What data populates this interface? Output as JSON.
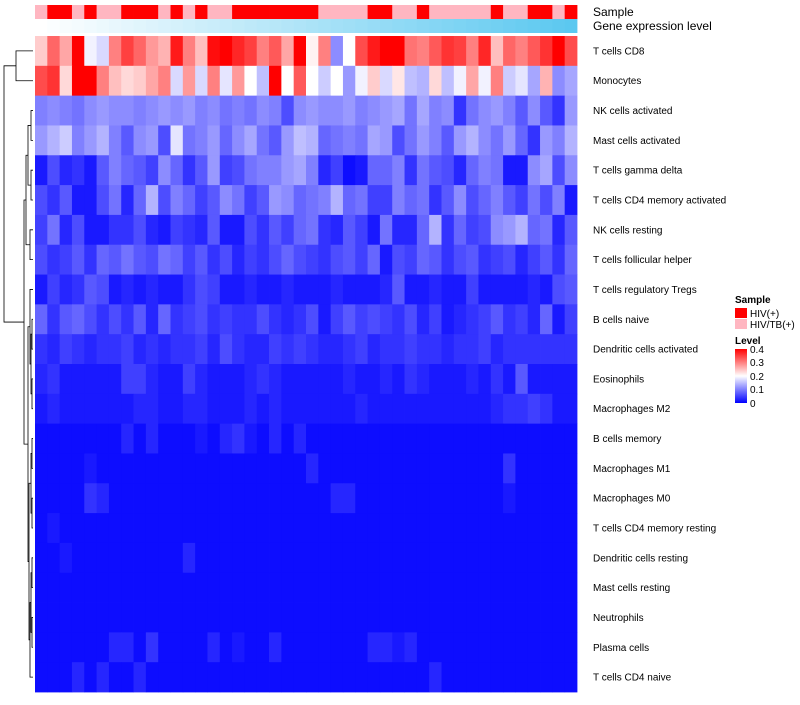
{
  "chart_data": {
    "type": "heatmap",
    "title": "",
    "annotation_labels": {
      "sample": "Sample",
      "gene_expression": "Gene expression level"
    },
    "rows": [
      "T cells CD8",
      "Monocytes",
      "NK cells activated",
      "Mast cells activated",
      "T cells gamma delta",
      "T cells CD4 memory activated",
      "NK cells resting",
      "T cells follicular helper",
      "T cells regulatory  Tregs",
      "B cells naive",
      "Dendritic cells activated",
      "Eosinophils",
      "Macrophages M2",
      "B cells memory",
      "Macrophages M1",
      "Macrophages M0",
      "T cells CD4 memory resting",
      "Dendritic cells resting",
      "Mast cells resting",
      "Neutrophils",
      "Plasma cells",
      "T cells CD4 naive"
    ],
    "n_columns": 44,
    "sample_groups": [
      "HIV/TB(+)",
      "HIV(+)",
      "HIV(+)",
      "HIV/TB(+)",
      "HIV(+)",
      "HIV/TB(+)",
      "HIV/TB(+)",
      "HIV(+)",
      "HIV(+)",
      "HIV(+)",
      "HIV/TB(+)",
      "HIV(+)",
      "HIV/TB(+)",
      "HIV(+)",
      "HIV/TB(+)",
      "HIV/TB(+)",
      "HIV(+)",
      "HIV(+)",
      "HIV(+)",
      "HIV(+)",
      "HIV(+)",
      "HIV(+)",
      "HIV(+)",
      "HIV/TB(+)",
      "HIV/TB(+)",
      "HIV/TB(+)",
      "HIV/TB(+)",
      "HIV(+)",
      "HIV(+)",
      "HIV/TB(+)",
      "HIV/TB(+)",
      "HIV(+)",
      "HIV/TB(+)",
      "HIV/TB(+)",
      "HIV/TB(+)",
      "HIV/TB(+)",
      "HIV/TB(+)",
      "HIV(+)",
      "HIV/TB(+)",
      "HIV/TB(+)",
      "HIV(+)",
      "HIV(+)",
      "HIV/TB(+)",
      "HIV(+)"
    ],
    "gene_expression_gradient": {
      "low_color": "#FFFFFF",
      "high_color": "#5BC8F0"
    },
    "values": [
      [
        0.24,
        0.32,
        0.27,
        0.4,
        0.19,
        0.17,
        0.3,
        0.35,
        0.32,
        0.28,
        0.26,
        0.38,
        0.3,
        0.25,
        0.39,
        0.4,
        0.37,
        0.35,
        0.3,
        0.33,
        0.27,
        0.4,
        0.21,
        0.3,
        0.11,
        0.2,
        0.34,
        0.38,
        0.4,
        0.4,
        0.31,
        0.3,
        0.33,
        0.36,
        0.35,
        0.3,
        0.37,
        0.25,
        0.32,
        0.3,
        0.33,
        0.36,
        0.4,
        0.34
      ],
      [
        0.34,
        0.36,
        0.23,
        0.4,
        0.4,
        0.3,
        0.25,
        0.23,
        0.24,
        0.27,
        0.3,
        0.17,
        0.28,
        0.17,
        0.3,
        0.18,
        0.28,
        0.2,
        0.15,
        0.4,
        0.2,
        0.33,
        0.2,
        0.16,
        0.2,
        0.12,
        0.19,
        0.24,
        0.17,
        0.22,
        0.15,
        0.14,
        0.23,
        0.15,
        0.19,
        0.27,
        0.19,
        0.3,
        0.16,
        0.18,
        0.13,
        0.26,
        0.11,
        0.13
      ],
      [
        0.1,
        0.11,
        0.1,
        0.09,
        0.11,
        0.12,
        0.11,
        0.11,
        0.1,
        0.11,
        0.12,
        0.11,
        0.12,
        0.1,
        0.11,
        0.09,
        0.1,
        0.09,
        0.11,
        0.1,
        0.06,
        0.11,
        0.12,
        0.11,
        0.11,
        0.12,
        0.1,
        0.11,
        0.12,
        0.13,
        0.09,
        0.13,
        0.1,
        0.11,
        0.04,
        0.09,
        0.11,
        0.12,
        0.1,
        0.07,
        0.11,
        0.07,
        0.04,
        0.12
      ],
      [
        0.12,
        0.14,
        0.16,
        0.1,
        0.12,
        0.14,
        0.1,
        0.07,
        0.11,
        0.12,
        0.06,
        0.18,
        0.09,
        0.1,
        0.12,
        0.08,
        0.11,
        0.13,
        0.09,
        0.07,
        0.12,
        0.15,
        0.14,
        0.08,
        0.09,
        0.1,
        0.09,
        0.13,
        0.12,
        0.06,
        0.09,
        0.12,
        0.1,
        0.07,
        0.12,
        0.14,
        0.11,
        0.09,
        0.12,
        0.08,
        0.04,
        0.12,
        0.1,
        0.14
      ],
      [
        0.02,
        0.06,
        0.03,
        0.04,
        0.02,
        0.07,
        0.1,
        0.08,
        0.07,
        0.05,
        0.11,
        0.08,
        0.04,
        0.07,
        0.12,
        0.05,
        0.06,
        0.09,
        0.1,
        0.1,
        0.12,
        0.13,
        0.1,
        0.03,
        0.05,
        0.01,
        0.02,
        0.08,
        0.08,
        0.1,
        0.04,
        0.09,
        0.07,
        0.06,
        0.03,
        0.08,
        0.1,
        0.09,
        0.02,
        0.02,
        0.11,
        0.13,
        0.06,
        0.11
      ],
      [
        0.06,
        0.04,
        0.07,
        0.02,
        0.02,
        0.06,
        0.09,
        0.03,
        0.08,
        0.14,
        0.06,
        0.1,
        0.08,
        0.05,
        0.07,
        0.11,
        0.09,
        0.05,
        0.07,
        0.12,
        0.11,
        0.08,
        0.09,
        0.1,
        0.14,
        0.08,
        0.09,
        0.05,
        0.05,
        0.1,
        0.08,
        0.09,
        0.04,
        0.07,
        0.11,
        0.06,
        0.08,
        0.1,
        0.07,
        0.05,
        0.09,
        0.06,
        0.1,
        0.02
      ],
      [
        0.05,
        0.09,
        0.03,
        0.06,
        0.02,
        0.02,
        0.04,
        0.04,
        0.06,
        0.03,
        0.02,
        0.05,
        0.04,
        0.03,
        0.07,
        0.02,
        0.02,
        0.06,
        0.04,
        0.07,
        0.05,
        0.08,
        0.09,
        0.04,
        0.03,
        0.07,
        0.05,
        0.02,
        0.09,
        0.03,
        0.03,
        0.08,
        0.14,
        0.04,
        0.08,
        0.05,
        0.06,
        0.11,
        0.12,
        0.14,
        0.08,
        0.09,
        0.03,
        0.07
      ],
      [
        0.06,
        0.04,
        0.05,
        0.07,
        0.04,
        0.08,
        0.07,
        0.09,
        0.07,
        0.06,
        0.09,
        0.08,
        0.05,
        0.07,
        0.04,
        0.06,
        0.03,
        0.05,
        0.04,
        0.06,
        0.08,
        0.06,
        0.05,
        0.04,
        0.06,
        0.07,
        0.05,
        0.08,
        0.02,
        0.06,
        0.05,
        0.08,
        0.07,
        0.04,
        0.06,
        0.07,
        0.04,
        0.05,
        0.06,
        0.03,
        0.05,
        0.07,
        0.04,
        0.08
      ],
      [
        0.02,
        0.05,
        0.03,
        0.04,
        0.07,
        0.06,
        0.02,
        0.03,
        0.02,
        0.03,
        0.02,
        0.02,
        0.04,
        0.06,
        0.05,
        0.02,
        0.02,
        0.03,
        0.02,
        0.02,
        0.03,
        0.02,
        0.02,
        0.02,
        0.03,
        0.02,
        0.02,
        0.02,
        0.03,
        0.07,
        0.02,
        0.02,
        0.03,
        0.02,
        0.02,
        0.05,
        0.02,
        0.02,
        0.02,
        0.02,
        0.03,
        0.02,
        0.06,
        0.07
      ],
      [
        0.08,
        0.04,
        0.07,
        0.08,
        0.06,
        0.04,
        0.06,
        0.04,
        0.07,
        0.03,
        0.08,
        0.04,
        0.05,
        0.06,
        0.04,
        0.05,
        0.04,
        0.04,
        0.06,
        0.04,
        0.03,
        0.04,
        0.06,
        0.02,
        0.05,
        0.07,
        0.05,
        0.06,
        0.05,
        0.04,
        0.06,
        0.03,
        0.05,
        0.02,
        0.03,
        0.04,
        0.05,
        0.07,
        0.04,
        0.05,
        0.03,
        0.08,
        0.02,
        0.05
      ],
      [
        0.04,
        0.03,
        0.05,
        0.04,
        0.03,
        0.04,
        0.04,
        0.05,
        0.03,
        0.04,
        0.03,
        0.04,
        0.04,
        0.05,
        0.03,
        0.06,
        0.04,
        0.03,
        0.03,
        0.05,
        0.04,
        0.05,
        0.04,
        0.03,
        0.03,
        0.04,
        0.05,
        0.03,
        0.04,
        0.04,
        0.05,
        0.04,
        0.04,
        0.03,
        0.04,
        0.04,
        0.05,
        0.03,
        0.04,
        0.04,
        0.04,
        0.04,
        0.04,
        0.04
      ],
      [
        0.03,
        0.04,
        0.02,
        0.02,
        0.02,
        0.02,
        0.02,
        0.05,
        0.05,
        0.03,
        0.02,
        0.02,
        0.05,
        0.03,
        0.02,
        0.02,
        0.02,
        0.03,
        0.04,
        0.03,
        0.02,
        0.02,
        0.02,
        0.02,
        0.02,
        0.03,
        0.02,
        0.02,
        0.03,
        0.02,
        0.04,
        0.03,
        0.02,
        0.02,
        0.02,
        0.03,
        0.02,
        0.04,
        0.02,
        0.07,
        0.02,
        0.02,
        0.02,
        0.02
      ],
      [
        0.02,
        0.03,
        0.02,
        0.02,
        0.02,
        0.02,
        0.02,
        0.02,
        0.03,
        0.03,
        0.02,
        0.02,
        0.03,
        0.03,
        0.02,
        0.02,
        0.02,
        0.03,
        0.02,
        0.03,
        0.02,
        0.02,
        0.02,
        0.02,
        0.02,
        0.02,
        0.03,
        0.02,
        0.02,
        0.02,
        0.02,
        0.02,
        0.02,
        0.02,
        0.02,
        0.02,
        0.02,
        0.03,
        0.04,
        0.04,
        0.05,
        0.04,
        0.02,
        0.02
      ],
      [
        0.01,
        0.01,
        0.01,
        0.01,
        0.01,
        0.01,
        0.01,
        0.03,
        0.01,
        0.03,
        0.01,
        0.01,
        0.01,
        0.02,
        0.01,
        0.03,
        0.04,
        0.02,
        0.01,
        0.03,
        0.01,
        0.03,
        0.01,
        0.01,
        0.01,
        0.01,
        0.01,
        0.01,
        0.01,
        0.01,
        0.01,
        0.01,
        0.01,
        0.01,
        0.01,
        0.01,
        0.01,
        0.01,
        0.01,
        0.01,
        0.01,
        0.01,
        0.01,
        0.01
      ],
      [
        0.01,
        0.01,
        0.01,
        0.01,
        0.02,
        0.01,
        0.01,
        0.01,
        0.01,
        0.01,
        0.01,
        0.01,
        0.01,
        0.01,
        0.01,
        0.01,
        0.01,
        0.01,
        0.01,
        0.01,
        0.01,
        0.01,
        0.03,
        0.01,
        0.01,
        0.01,
        0.01,
        0.01,
        0.01,
        0.01,
        0.01,
        0.01,
        0.01,
        0.01,
        0.01,
        0.01,
        0.01,
        0.01,
        0.04,
        0.01,
        0.01,
        0.01,
        0.01,
        0.01
      ],
      [
        0.01,
        0.01,
        0.01,
        0.01,
        0.04,
        0.03,
        0.01,
        0.01,
        0.01,
        0.01,
        0.01,
        0.01,
        0.01,
        0.01,
        0.01,
        0.01,
        0.01,
        0.01,
        0.01,
        0.01,
        0.01,
        0.01,
        0.01,
        0.01,
        0.03,
        0.03,
        0.01,
        0.01,
        0.01,
        0.01,
        0.01,
        0.01,
        0.01,
        0.01,
        0.01,
        0.01,
        0.01,
        0.01,
        0.02,
        0.01,
        0.01,
        0.01,
        0.01,
        0.01
      ],
      [
        0.01,
        0.02,
        0.01,
        0.01,
        0.01,
        0.01,
        0.01,
        0.01,
        0.01,
        0.01,
        0.01,
        0.01,
        0.01,
        0.01,
        0.01,
        0.01,
        0.01,
        0.01,
        0.01,
        0.01,
        0.01,
        0.01,
        0.01,
        0.01,
        0.01,
        0.01,
        0.01,
        0.01,
        0.01,
        0.01,
        0.01,
        0.01,
        0.01,
        0.01,
        0.01,
        0.01,
        0.01,
        0.01,
        0.01,
        0.01,
        0.01,
        0.01,
        0.01,
        0.01
      ],
      [
        0.01,
        0.01,
        0.02,
        0.01,
        0.01,
        0.01,
        0.01,
        0.01,
        0.01,
        0.01,
        0.01,
        0.01,
        0.03,
        0.01,
        0.01,
        0.01,
        0.01,
        0.01,
        0.01,
        0.01,
        0.01,
        0.01,
        0.01,
        0.01,
        0.01,
        0.01,
        0.01,
        0.01,
        0.01,
        0.01,
        0.01,
        0.01,
        0.01,
        0.01,
        0.01,
        0.01,
        0.01,
        0.01,
        0.01,
        0.01,
        0.01,
        0.01,
        0.01,
        0.01
      ],
      [
        0.01,
        0.01,
        0.01,
        0.01,
        0.01,
        0.01,
        0.01,
        0.01,
        0.01,
        0.01,
        0.01,
        0.01,
        0.01,
        0.01,
        0.01,
        0.01,
        0.01,
        0.01,
        0.01,
        0.01,
        0.01,
        0.01,
        0.01,
        0.01,
        0.01,
        0.01,
        0.01,
        0.01,
        0.01,
        0.01,
        0.01,
        0.01,
        0.01,
        0.01,
        0.01,
        0.01,
        0.01,
        0.01,
        0.01,
        0.01,
        0.01,
        0.01,
        0.01,
        0.01
      ],
      [
        0.01,
        0.01,
        0.01,
        0.01,
        0.01,
        0.01,
        0.01,
        0.01,
        0.01,
        0.01,
        0.01,
        0.01,
        0.01,
        0.01,
        0.01,
        0.01,
        0.01,
        0.01,
        0.01,
        0.01,
        0.01,
        0.01,
        0.01,
        0.01,
        0.01,
        0.01,
        0.01,
        0.01,
        0.01,
        0.01,
        0.01,
        0.01,
        0.01,
        0.01,
        0.01,
        0.01,
        0.01,
        0.01,
        0.01,
        0.01,
        0.01,
        0.01,
        0.01,
        0.01
      ],
      [
        0.01,
        0.01,
        0.01,
        0.01,
        0.01,
        0.01,
        0.03,
        0.03,
        0.01,
        0.04,
        0.01,
        0.01,
        0.01,
        0.01,
        0.03,
        0.01,
        0.02,
        0.01,
        0.01,
        0.03,
        0.01,
        0.01,
        0.01,
        0.01,
        0.01,
        0.01,
        0.01,
        0.03,
        0.03,
        0.02,
        0.03,
        0.01,
        0.01,
        0.01,
        0.01,
        0.01,
        0.01,
        0.01,
        0.01,
        0.01,
        0.01,
        0.01,
        0.01,
        0.01
      ],
      [
        0.01,
        0.01,
        0.01,
        0.03,
        0.01,
        0.03,
        0.01,
        0.01,
        0.03,
        0.01,
        0.01,
        0.01,
        0.01,
        0.01,
        0.01,
        0.01,
        0.01,
        0.01,
        0.01,
        0.01,
        0.01,
        0.01,
        0.01,
        0.01,
        0.01,
        0.01,
        0.01,
        0.01,
        0.01,
        0.01,
        0.01,
        0.01,
        0.03,
        0.01,
        0.01,
        0.01,
        0.01,
        0.01,
        0.01,
        0.01,
        0.01,
        0.01,
        0.01,
        0.01
      ]
    ],
    "color_scale": {
      "low": "#0000FF",
      "mid": "#FFFFFF",
      "high": "#FF0000",
      "min": 0,
      "mid_value": 0.2,
      "max": 0.4
    },
    "legend": {
      "sample_title": "Sample",
      "sample_items": [
        {
          "label": "HIV(+)",
          "color": "#FF0000"
        },
        {
          "label": "HIV/TB(+)",
          "color": "#FFB6C1"
        }
      ],
      "level_title": "Level",
      "level_ticks": [
        "0.4",
        "0.3",
        "0.2",
        "0.1",
        "0"
      ]
    }
  }
}
